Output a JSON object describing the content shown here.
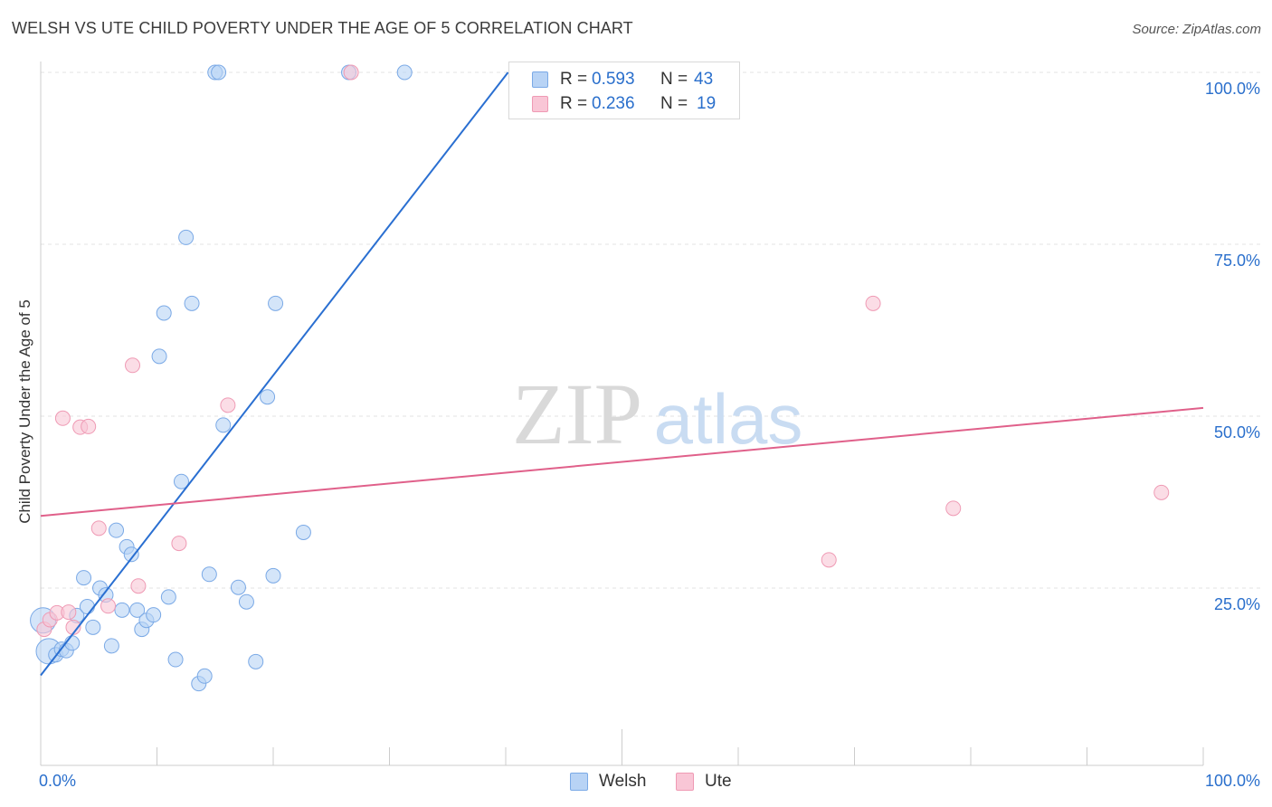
{
  "header": {
    "title": "WELSH VS UTE CHILD POVERTY UNDER THE AGE OF 5 CORRELATION CHART",
    "source": "Source: ZipAtlas.com"
  },
  "watermark": {
    "zip": "ZIP",
    "atlas": "atlas"
  },
  "legend": {
    "welsh": {
      "r_label": "R =",
      "r_value": "0.593",
      "n_label": "N =",
      "n_value": "43"
    },
    "ute": {
      "r_label": "R =",
      "r_value": "0.236",
      "n_label": "N =",
      "n_value": "19"
    }
  },
  "bottom_legend": {
    "welsh": "Welsh",
    "ute": "Ute"
  },
  "colors": {
    "welsh_fill": "#b8d3f5",
    "welsh_stroke": "#7aa9e6",
    "welsh_line": "#2a6fd1",
    "ute_fill": "#f9c6d6",
    "ute_stroke": "#ef9ab4",
    "ute_line": "#e0608a",
    "axis_text": "#2a6fcc",
    "grid": "#e3e3e3"
  },
  "chart_data": {
    "type": "scatter",
    "title": "WELSH VS UTE CHILD POVERTY UNDER THE AGE OF 5 CORRELATION CHART",
    "xlabel": "",
    "ylabel": "Child Poverty Under the Age of 5",
    "xlim": [
      0,
      100
    ],
    "ylim": [
      0,
      100
    ],
    "x_tick_labels": [
      "0.0%",
      "100.0%"
    ],
    "y_ticks": [
      25,
      50,
      75,
      100
    ],
    "y_tick_labels": [
      "25.0%",
      "50.0%",
      "75.0%",
      "100.0%"
    ],
    "grid": true,
    "series": [
      {
        "name": "Welsh",
        "r": 0.593,
        "n": 43,
        "trend": {
          "x0": 0,
          "y0": 12.3,
          "x1": 40.2,
          "y1": 100
        },
        "points": [
          {
            "x": 0.2,
            "y": 20.3,
            "big": true
          },
          {
            "x": 0.7,
            "y": 15.8,
            "big": true
          },
          {
            "x": 1.3,
            "y": 15.3
          },
          {
            "x": 1.8,
            "y": 16.1
          },
          {
            "x": 2.2,
            "y": 15.9
          },
          {
            "x": 2.7,
            "y": 17.0
          },
          {
            "x": 3.1,
            "y": 21.0
          },
          {
            "x": 3.7,
            "y": 26.5
          },
          {
            "x": 4.0,
            "y": 22.3
          },
          {
            "x": 4.5,
            "y": 19.3
          },
          {
            "x": 5.1,
            "y": 25.0
          },
          {
            "x": 5.6,
            "y": 24.0
          },
          {
            "x": 6.1,
            "y": 16.6
          },
          {
            "x": 6.5,
            "y": 33.4
          },
          {
            "x": 7.0,
            "y": 21.8
          },
          {
            "x": 7.4,
            "y": 31.0
          },
          {
            "x": 7.8,
            "y": 29.9
          },
          {
            "x": 8.3,
            "y": 21.8
          },
          {
            "x": 8.7,
            "y": 19.0
          },
          {
            "x": 9.1,
            "y": 20.3
          },
          {
            "x": 9.7,
            "y": 21.1
          },
          {
            "x": 10.2,
            "y": 58.7
          },
          {
            "x": 10.6,
            "y": 65.0
          },
          {
            "x": 11.0,
            "y": 23.7
          },
          {
            "x": 11.6,
            "y": 14.6
          },
          {
            "x": 12.1,
            "y": 40.5
          },
          {
            "x": 12.5,
            "y": 76.0
          },
          {
            "x": 13.0,
            "y": 66.4
          },
          {
            "x": 13.6,
            "y": 11.1
          },
          {
            "x": 14.1,
            "y": 12.2
          },
          {
            "x": 14.5,
            "y": 27.0
          },
          {
            "x": 15.0,
            "y": 100
          },
          {
            "x": 15.3,
            "y": 100
          },
          {
            "x": 15.7,
            "y": 48.7
          },
          {
            "x": 17.0,
            "y": 25.1
          },
          {
            "x": 17.7,
            "y": 23.0
          },
          {
            "x": 18.5,
            "y": 14.3
          },
          {
            "x": 19.5,
            "y": 52.8
          },
          {
            "x": 20.0,
            "y": 26.8
          },
          {
            "x": 20.2,
            "y": 66.4
          },
          {
            "x": 22.6,
            "y": 33.1
          },
          {
            "x": 26.5,
            "y": 100
          },
          {
            "x": 31.3,
            "y": 100
          }
        ]
      },
      {
        "name": "Ute",
        "r": 0.236,
        "n": 19,
        "trend": {
          "x0": 0,
          "y0": 35.5,
          "x1": 100,
          "y1": 51.2
        },
        "points": [
          {
            "x": 0.3,
            "y": 19.0
          },
          {
            "x": 0.8,
            "y": 20.4
          },
          {
            "x": 1.4,
            "y": 21.4
          },
          {
            "x": 1.9,
            "y": 49.7
          },
          {
            "x": 2.4,
            "y": 21.5
          },
          {
            "x": 2.8,
            "y": 19.3
          },
          {
            "x": 3.4,
            "y": 48.4
          },
          {
            "x": 4.1,
            "y": 48.5
          },
          {
            "x": 5.0,
            "y": 33.7
          },
          {
            "x": 5.8,
            "y": 22.4
          },
          {
            "x": 7.9,
            "y": 57.4
          },
          {
            "x": 8.4,
            "y": 25.3
          },
          {
            "x": 11.9,
            "y": 31.5
          },
          {
            "x": 16.1,
            "y": 51.6
          },
          {
            "x": 26.7,
            "y": 100
          },
          {
            "x": 67.8,
            "y": 29.1
          },
          {
            "x": 71.6,
            "y": 66.4
          },
          {
            "x": 78.5,
            "y": 36.6
          },
          {
            "x": 96.4,
            "y": 38.9
          }
        ]
      }
    ]
  }
}
